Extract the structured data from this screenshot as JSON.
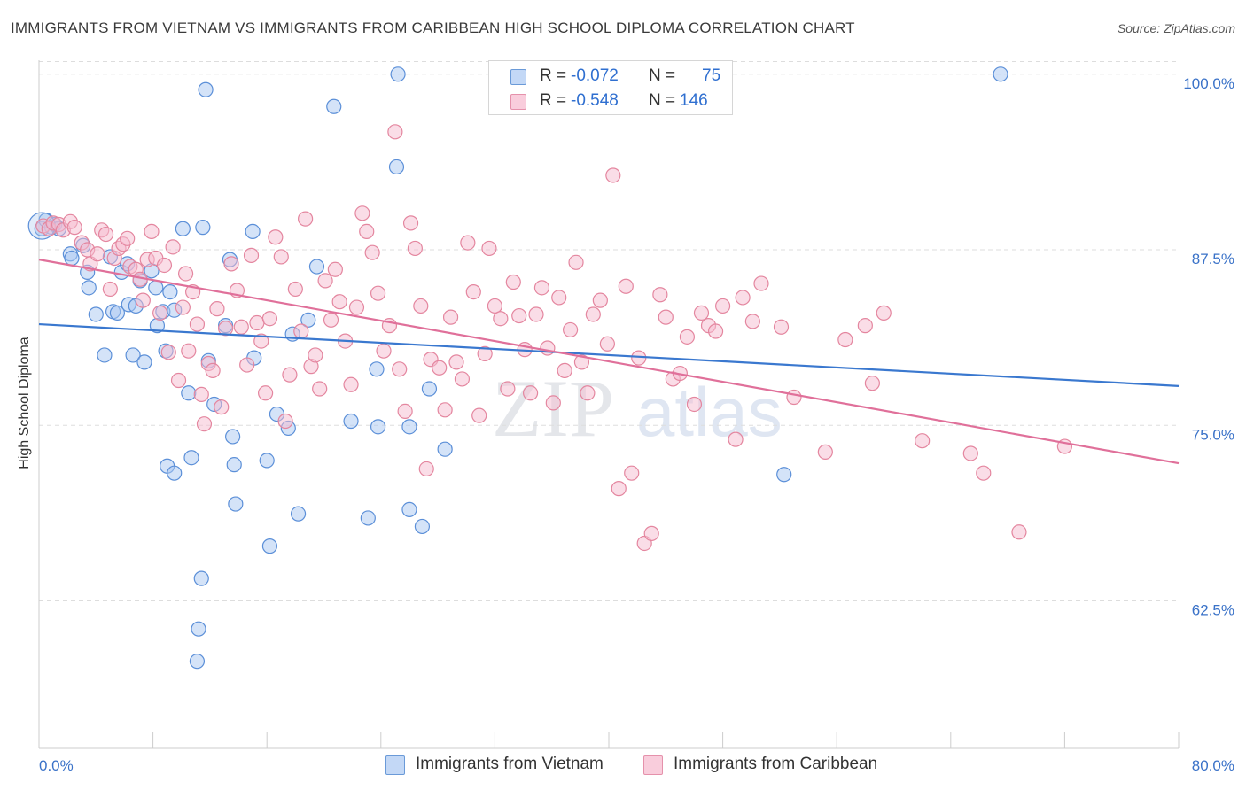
{
  "header": {
    "title": "IMMIGRANTS FROM VIETNAM VS IMMIGRANTS FROM CARIBBEAN HIGH SCHOOL DIPLOMA CORRELATION CHART",
    "source": "Source: ZipAtlas.com"
  },
  "watermark": {
    "zip": "ZIP",
    "atlas": "atlas"
  },
  "legend": {
    "r_label": "R =",
    "n_label": "N =",
    "vietnam": {
      "r": "-0.072",
      "n": "75"
    },
    "caribbean": {
      "r": "-0.548",
      "n": "146"
    }
  },
  "bottom_legend": {
    "vietnam": "Immigrants from Vietnam",
    "caribbean": "Immigrants from Caribbean"
  },
  "colors": {
    "vietnam_fill": "#a9c8f2",
    "vietnam_stroke": "#5b8fd8",
    "vietnam_line": "#3a78cf",
    "caribbean_fill": "#f6bcd0",
    "caribbean_stroke": "#e4869f",
    "caribbean_line": "#e0709a",
    "tick_label": "#3a72c8",
    "grid": "#dddddd"
  },
  "chart_data": {
    "type": "scatter",
    "title": "IMMIGRANTS FROM VIETNAM VS IMMIGRANTS FROM CARIBBEAN HIGH SCHOOL DIPLOMA CORRELATION CHART",
    "xlabel": "",
    "ylabel": "High School Diploma",
    "xlim": [
      0,
      80
    ],
    "ylim": [
      52.0,
      101.5
    ],
    "x_tick_labels": [
      "0.0%",
      "80.0%"
    ],
    "y_ticks": [
      62.5,
      75.0,
      87.5,
      100.0
    ],
    "y_tick_labels": [
      "62.5%",
      "75.0%",
      "87.5%",
      "100.0%"
    ],
    "grid": "horizontal dashed",
    "legend_position": "top-center",
    "series": [
      {
        "name": "Immigrants from Vietnam",
        "trend": {
          "x": [
            0,
            80
          ],
          "y": [
            82.2,
            77.8
          ]
        },
        "points": [
          [
            0.2,
            89.0
          ],
          [
            0.5,
            89.6
          ],
          [
            0.9,
            89.1
          ],
          [
            1.1,
            89.3
          ],
          [
            1.4,
            89.0
          ],
          [
            2.2,
            87.2
          ],
          [
            2.3,
            86.9
          ],
          [
            3.1,
            87.8
          ],
          [
            3.4,
            85.9
          ],
          [
            3.5,
            84.8
          ],
          [
            4.0,
            82.9
          ],
          [
            4.6,
            80.0
          ],
          [
            5.2,
            83.1
          ],
          [
            5.5,
            83.0
          ],
          [
            5.0,
            87.0
          ],
          [
            5.8,
            85.9
          ],
          [
            6.2,
            86.5
          ],
          [
            6.3,
            83.6
          ],
          [
            6.6,
            80.0
          ],
          [
            6.8,
            83.5
          ],
          [
            7.1,
            85.3
          ],
          [
            7.4,
            79.5
          ],
          [
            7.9,
            86.0
          ],
          [
            8.2,
            84.8
          ],
          [
            8.3,
            82.1
          ],
          [
            8.7,
            83.1
          ],
          [
            8.9,
            80.3
          ],
          [
            9.2,
            84.5
          ],
          [
            9.5,
            83.2
          ],
          [
            9.0,
            72.1
          ],
          [
            10.1,
            89.0
          ],
          [
            10.5,
            77.3
          ],
          [
            10.7,
            72.7
          ],
          [
            9.5,
            71.6
          ],
          [
            11.1,
            58.2
          ],
          [
            11.2,
            60.5
          ],
          [
            11.4,
            64.1
          ],
          [
            11.5,
            89.1
          ],
          [
            11.7,
            98.9
          ],
          [
            11.9,
            79.6
          ],
          [
            12.3,
            76.5
          ],
          [
            13.1,
            82.1
          ],
          [
            13.4,
            86.8
          ],
          [
            13.6,
            74.2
          ],
          [
            13.7,
            72.2
          ],
          [
            13.8,
            69.4
          ],
          [
            15.0,
            88.8
          ],
          [
            15.1,
            79.8
          ],
          [
            16.0,
            72.5
          ],
          [
            16.2,
            66.4
          ],
          [
            16.7,
            75.8
          ],
          [
            17.5,
            74.8
          ],
          [
            17.8,
            81.5
          ],
          [
            18.2,
            68.7
          ],
          [
            18.9,
            82.5
          ],
          [
            19.5,
            86.3
          ],
          [
            20.7,
            97.7
          ],
          [
            21.9,
            75.3
          ],
          [
            23.1,
            68.4
          ],
          [
            23.7,
            79.0
          ],
          [
            23.8,
            74.9
          ],
          [
            25.2,
            100.0
          ],
          [
            26.0,
            74.9
          ],
          [
            25.1,
            93.4
          ],
          [
            26.0,
            69.0
          ],
          [
            26.9,
            67.8
          ],
          [
            27.4,
            77.6
          ],
          [
            28.5,
            73.3
          ],
          [
            34.1,
            100.0
          ],
          [
            52.3,
            71.5
          ],
          [
            67.5,
            100.0
          ]
        ]
      },
      {
        "name": "Immigrants from Caribbean",
        "trend": {
          "x": [
            0,
            80
          ],
          "y": [
            86.8,
            72.3
          ]
        },
        "points": [
          [
            0.3,
            89.2
          ],
          [
            0.7,
            89.0
          ],
          [
            1.0,
            89.4
          ],
          [
            1.4,
            89.3
          ],
          [
            1.7,
            88.9
          ],
          [
            2.2,
            89.5
          ],
          [
            2.5,
            89.1
          ],
          [
            3.0,
            88.0
          ],
          [
            3.4,
            87.5
          ],
          [
            3.6,
            86.5
          ],
          [
            4.1,
            87.2
          ],
          [
            4.4,
            88.9
          ],
          [
            4.7,
            88.6
          ],
          [
            5.0,
            84.7
          ],
          [
            5.3,
            86.9
          ],
          [
            5.6,
            87.6
          ],
          [
            5.9,
            87.9
          ],
          [
            6.2,
            88.3
          ],
          [
            6.4,
            86.3
          ],
          [
            6.8,
            86.1
          ],
          [
            7.1,
            85.4
          ],
          [
            7.3,
            83.9
          ],
          [
            7.6,
            86.8
          ],
          [
            7.9,
            88.8
          ],
          [
            8.2,
            86.9
          ],
          [
            8.5,
            83.0
          ],
          [
            8.8,
            86.4
          ],
          [
            9.1,
            80.2
          ],
          [
            9.4,
            87.7
          ],
          [
            9.8,
            78.2
          ],
          [
            10.1,
            83.4
          ],
          [
            10.3,
            85.8
          ],
          [
            10.5,
            80.3
          ],
          [
            10.8,
            84.5
          ],
          [
            11.1,
            82.2
          ],
          [
            11.4,
            77.2
          ],
          [
            11.6,
            75.1
          ],
          [
            11.9,
            79.4
          ],
          [
            12.2,
            78.9
          ],
          [
            12.5,
            83.3
          ],
          [
            12.8,
            76.3
          ],
          [
            13.1,
            81.9
          ],
          [
            13.5,
            86.5
          ],
          [
            13.9,
            84.6
          ],
          [
            14.2,
            82.0
          ],
          [
            14.6,
            79.3
          ],
          [
            14.9,
            87.1
          ],
          [
            15.3,
            82.3
          ],
          [
            15.6,
            81.0
          ],
          [
            15.9,
            77.3
          ],
          [
            16.2,
            82.6
          ],
          [
            16.6,
            88.4
          ],
          [
            17.0,
            87.0
          ],
          [
            17.3,
            75.3
          ],
          [
            17.6,
            78.6
          ],
          [
            18.0,
            84.7
          ],
          [
            18.4,
            81.7
          ],
          [
            18.7,
            89.7
          ],
          [
            19.1,
            79.2
          ],
          [
            19.4,
            80.0
          ],
          [
            19.7,
            77.6
          ],
          [
            20.1,
            85.3
          ],
          [
            20.5,
            82.5
          ],
          [
            20.8,
            86.1
          ],
          [
            21.1,
            83.8
          ],
          [
            21.5,
            81.0
          ],
          [
            21.9,
            77.9
          ],
          [
            22.3,
            83.4
          ],
          [
            22.7,
            90.1
          ],
          [
            23.0,
            88.8
          ],
          [
            23.4,
            87.3
          ],
          [
            23.8,
            84.4
          ],
          [
            24.2,
            80.3
          ],
          [
            24.6,
            82.1
          ],
          [
            25.0,
            95.9
          ],
          [
            25.3,
            79.0
          ],
          [
            25.7,
            76.0
          ],
          [
            26.1,
            89.4
          ],
          [
            26.4,
            87.6
          ],
          [
            26.8,
            83.5
          ],
          [
            27.2,
            71.9
          ],
          [
            27.5,
            79.7
          ],
          [
            28.1,
            79.1
          ],
          [
            28.5,
            76.1
          ],
          [
            28.9,
            82.7
          ],
          [
            29.3,
            79.5
          ],
          [
            29.7,
            78.3
          ],
          [
            30.1,
            88.0
          ],
          [
            30.5,
            84.5
          ],
          [
            30.9,
            75.7
          ],
          [
            31.3,
            80.1
          ],
          [
            31.6,
            87.6
          ],
          [
            32.0,
            83.5
          ],
          [
            32.4,
            82.6
          ],
          [
            32.9,
            77.6
          ],
          [
            33.3,
            85.2
          ],
          [
            33.7,
            82.8
          ],
          [
            34.1,
            80.4
          ],
          [
            34.5,
            77.3
          ],
          [
            34.9,
            82.9
          ],
          [
            35.3,
            84.8
          ],
          [
            35.7,
            80.5
          ],
          [
            36.1,
            76.6
          ],
          [
            36.5,
            84.1
          ],
          [
            36.9,
            78.9
          ],
          [
            37.3,
            81.8
          ],
          [
            37.7,
            86.6
          ],
          [
            38.1,
            79.5
          ],
          [
            38.5,
            77.3
          ],
          [
            38.9,
            82.9
          ],
          [
            39.4,
            83.9
          ],
          [
            39.9,
            80.8
          ],
          [
            40.3,
            92.8
          ],
          [
            40.7,
            70.5
          ],
          [
            41.2,
            84.9
          ],
          [
            41.6,
            71.6
          ],
          [
            42.1,
            79.8
          ],
          [
            42.5,
            66.6
          ],
          [
            43.0,
            67.3
          ],
          [
            43.6,
            84.3
          ],
          [
            44.0,
            82.7
          ],
          [
            44.5,
            78.3
          ],
          [
            45.0,
            78.7
          ],
          [
            45.5,
            81.3
          ],
          [
            46.0,
            76.5
          ],
          [
            46.5,
            83.0
          ],
          [
            47.0,
            82.1
          ],
          [
            47.5,
            81.7
          ],
          [
            48.0,
            83.5
          ],
          [
            48.9,
            74.0
          ],
          [
            49.4,
            84.1
          ],
          [
            50.1,
            82.4
          ],
          [
            50.7,
            85.1
          ],
          [
            52.1,
            82.0
          ],
          [
            53.0,
            77.0
          ],
          [
            55.2,
            73.1
          ],
          [
            56.6,
            81.1
          ],
          [
            58.0,
            82.1
          ],
          [
            58.5,
            78.0
          ],
          [
            59.3,
            83.0
          ],
          [
            62.0,
            73.9
          ],
          [
            65.4,
            73.0
          ],
          [
            66.3,
            71.6
          ],
          [
            68.8,
            67.4
          ],
          [
            72.0,
            73.5
          ]
        ]
      }
    ]
  }
}
